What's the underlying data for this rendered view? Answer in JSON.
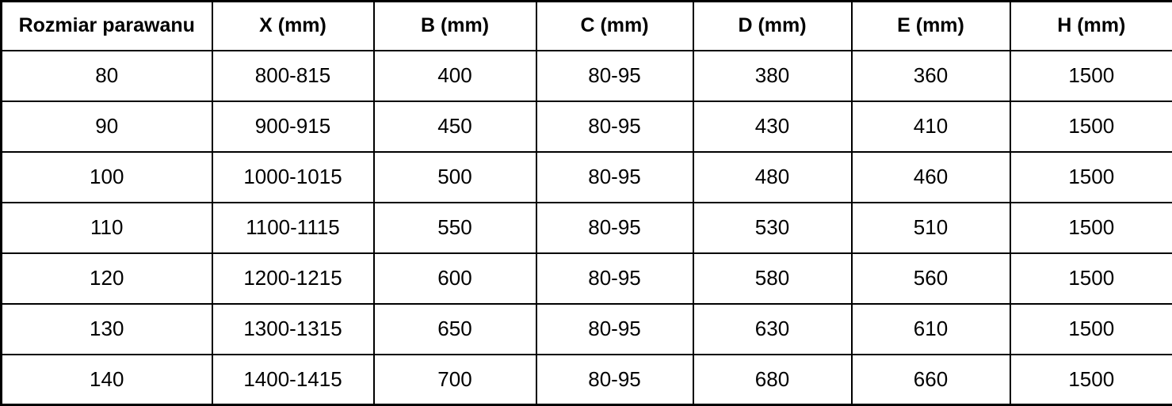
{
  "chart_data": {
    "type": "table",
    "columns": [
      "Rozmiar parawanu",
      "X (mm)",
      "B (mm)",
      "C (mm)",
      "D (mm)",
      "E (mm)",
      "H (mm)"
    ],
    "rows": [
      [
        "80",
        "800-815",
        "400",
        "80-95",
        "380",
        "360",
        "1500"
      ],
      [
        "90",
        "900-915",
        "450",
        "80-95",
        "430",
        "410",
        "1500"
      ],
      [
        "100",
        "1000-1015",
        "500",
        "80-95",
        "480",
        "460",
        "1500"
      ],
      [
        "110",
        "1100-1115",
        "550",
        "80-95",
        "530",
        "510",
        "1500"
      ],
      [
        "120",
        "1200-1215",
        "600",
        "80-95",
        "580",
        "560",
        "1500"
      ],
      [
        "130",
        "1300-1315",
        "650",
        "80-95",
        "630",
        "610",
        "1500"
      ],
      [
        "140",
        "1400-1415",
        "700",
        "80-95",
        "680",
        "660",
        "1500"
      ]
    ]
  },
  "colors": {
    "border": "#000000",
    "text": "#000000",
    "background": "#ffffff"
  }
}
